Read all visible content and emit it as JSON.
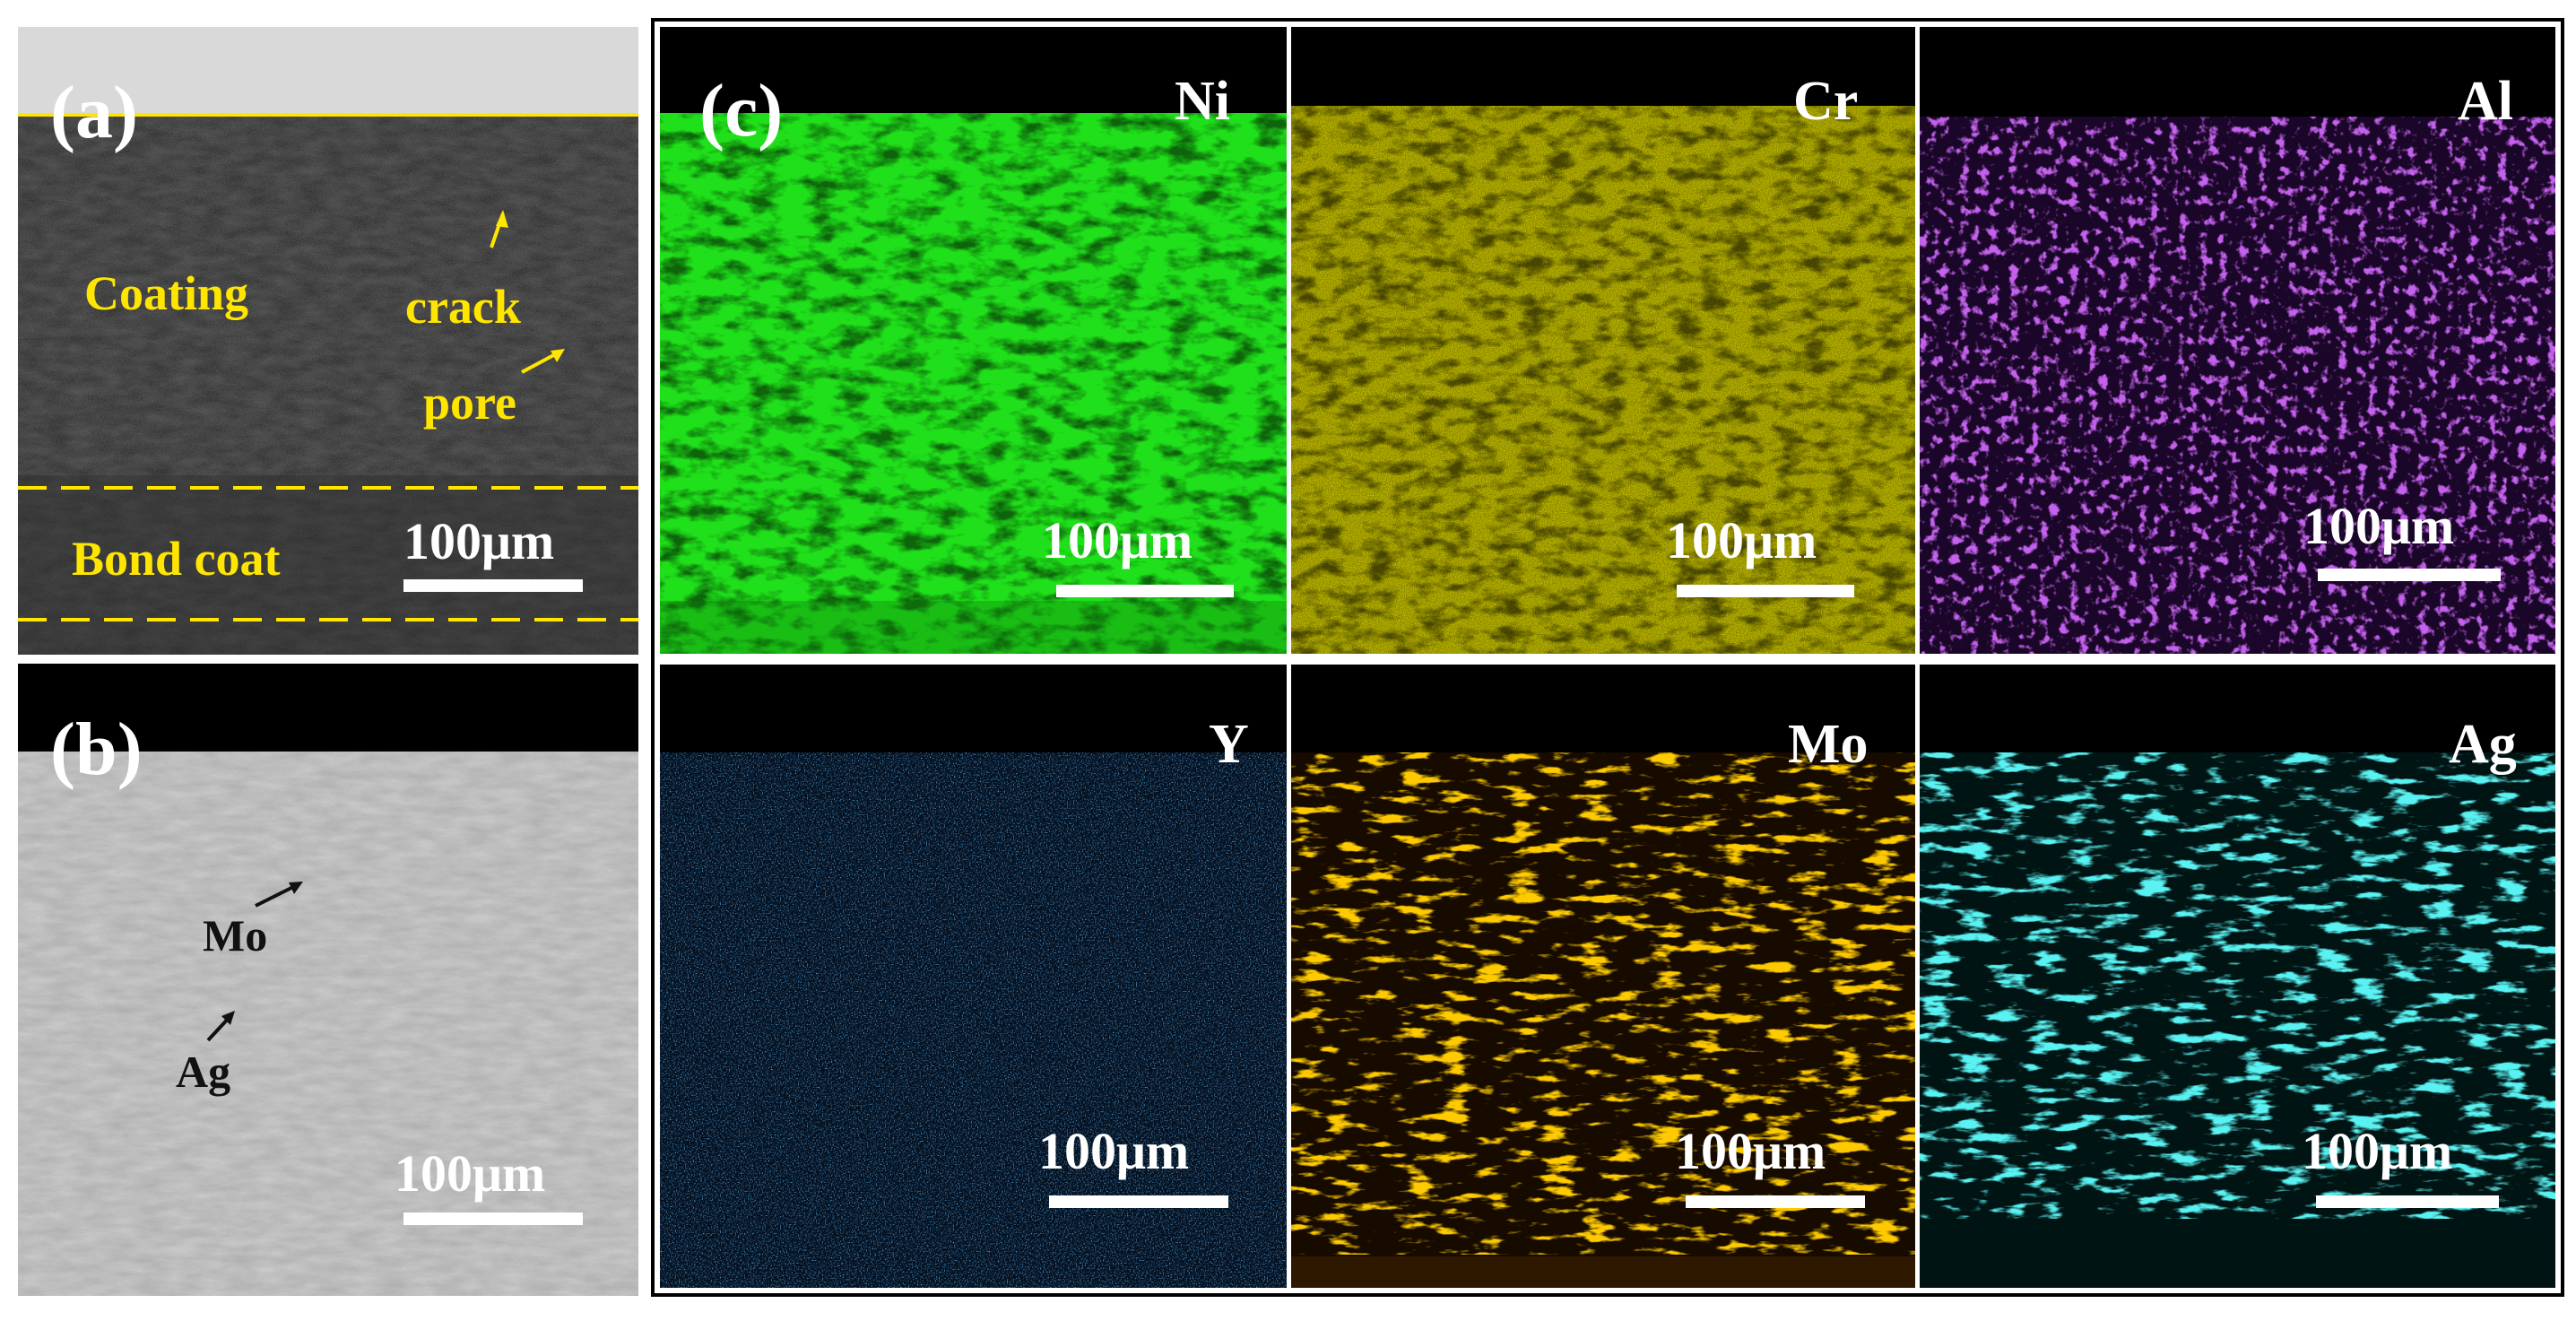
{
  "panel_a": {
    "letter": "(a)",
    "labels": {
      "coating": "Coating",
      "crack": "crack",
      "pore": "pore",
      "bond_coat": "Bond coat"
    },
    "scale_bar": "100μm"
  },
  "panel_b": {
    "letter": "(b)",
    "labels": {
      "mo": "Mo",
      "ag": "Ag"
    },
    "scale_bar": "100μm"
  },
  "panel_c": {
    "letter": "(c)",
    "maps": [
      {
        "element": "Ni",
        "scale_bar": "100μm",
        "color": "#1fe01a"
      },
      {
        "element": "Cr",
        "scale_bar": "100μm",
        "color": "#e6e000"
      },
      {
        "element": "Al",
        "scale_bar": "100μm",
        "color": "#8a1fd8"
      },
      {
        "element": "Y",
        "scale_bar": "100μm",
        "color": "#1a6fd6"
      },
      {
        "element": "Mo",
        "scale_bar": "100μm",
        "color": "#ff9a00"
      },
      {
        "element": "Ag",
        "scale_bar": "100μm",
        "color": "#18e0e0"
      }
    ]
  },
  "colors": {
    "annotation": "#ffe600",
    "background": "#ffffff"
  }
}
